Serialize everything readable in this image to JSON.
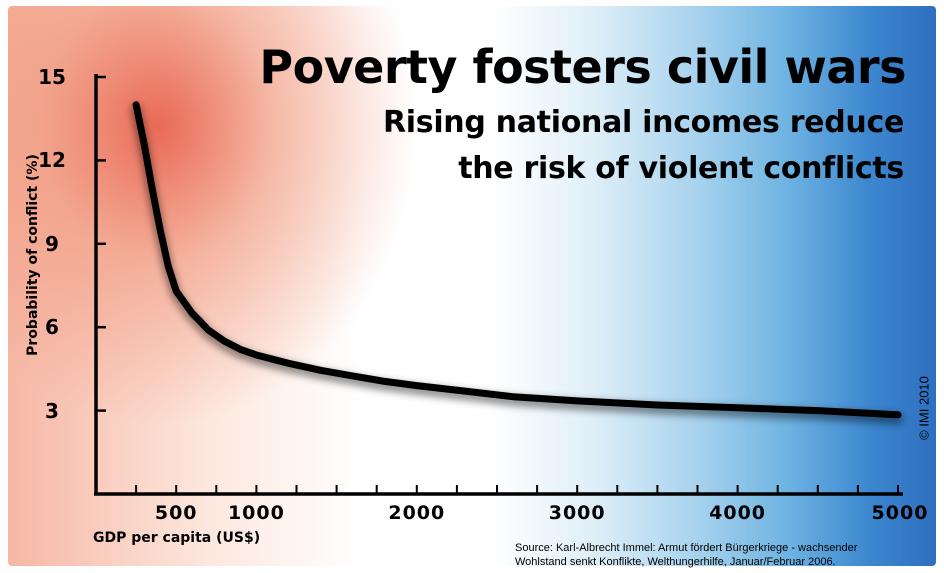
{
  "chart_data": {
    "type": "line",
    "title": "Poverty fosters civil wars",
    "subtitle_lines": [
      "Rising national incomes reduce",
      "the risk of violent conflicts"
    ],
    "xlabel": "GDP per capita (US$)",
    "ylabel": "Probability of conflict (%)",
    "xlim": [
      0,
      5000
    ],
    "ylim": [
      0,
      15
    ],
    "x_ticks": [
      500,
      1000,
      2000,
      3000,
      4000,
      5000
    ],
    "x_tick_labels": [
      "500",
      "1000",
      "2000",
      "3000",
      "4000",
      "5000"
    ],
    "y_ticks": [
      3,
      6,
      9,
      12,
      15
    ],
    "y_tick_labels": [
      "3",
      "6",
      "9",
      "12",
      "15"
    ],
    "grid": false,
    "series": [
      {
        "x": [
          250,
          300,
          350,
          400,
          450,
          500,
          550,
          600,
          650,
          700,
          800,
          900,
          1000,
          1200,
          1400,
          1600,
          1800,
          2000,
          2300,
          2600,
          3000,
          3500,
          4000,
          4500,
          5000
        ],
        "y": [
          14.0,
          12.6,
          11.0,
          9.5,
          8.2,
          7.3,
          6.9,
          6.5,
          6.2,
          5.9,
          5.5,
          5.2,
          5.0,
          4.7,
          4.45,
          4.25,
          4.05,
          3.9,
          3.7,
          3.5,
          3.35,
          3.2,
          3.1,
          3.0,
          2.85
        ]
      }
    ],
    "colors": {
      "line": "#000000"
    }
  },
  "copyright": "© IMI 2010",
  "source_lines": [
    "Source: Karl-Albrecht Immel: Armut fördert Bürgerkriege - wachsender",
    "Wohlstand senkt Konflikte, Welthungerhilfe, Januar/Februar 2006."
  ]
}
